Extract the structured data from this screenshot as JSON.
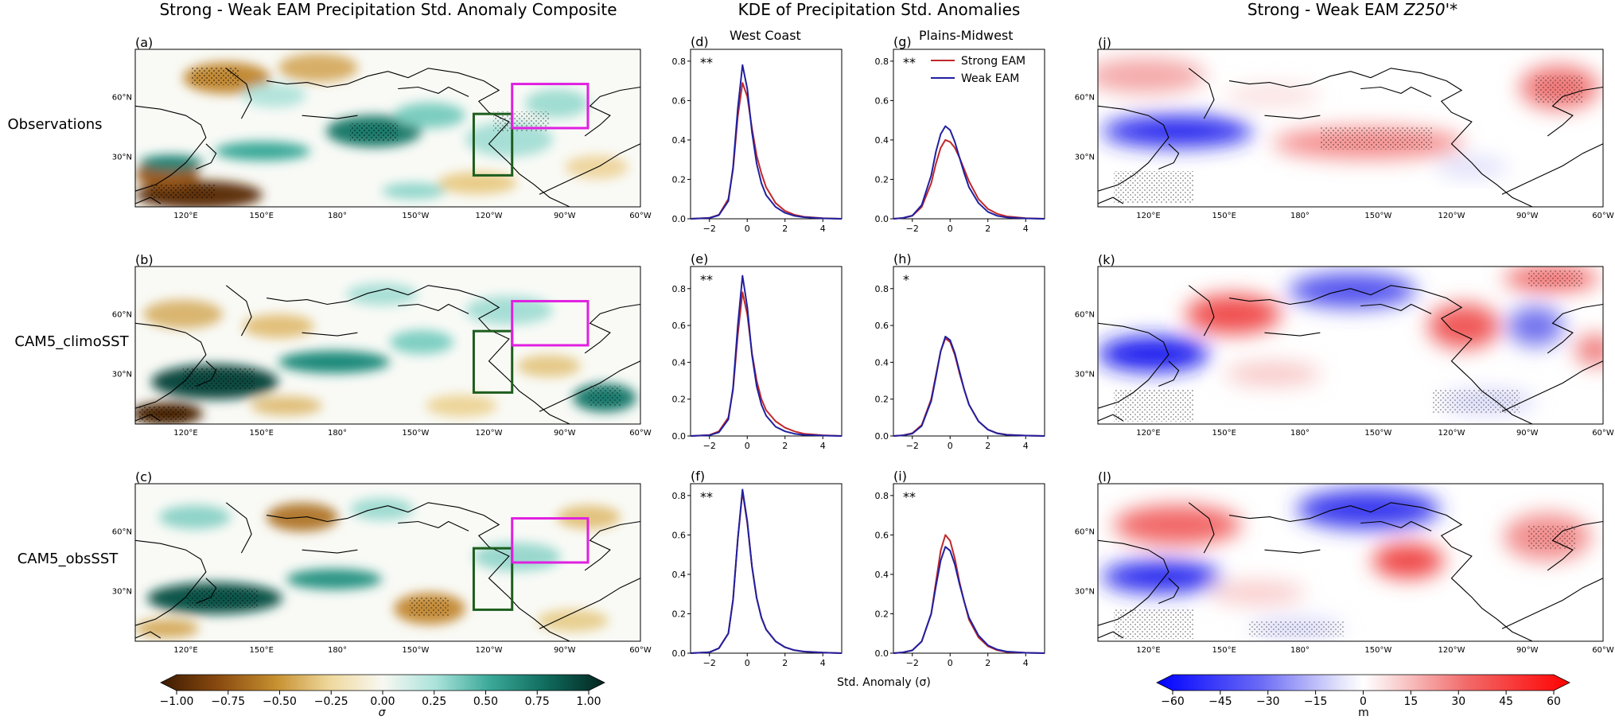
{
  "titles": {
    "left": "Strong - Weak EAM Precipitation Std. Anomaly Composite",
    "middle": "KDE of Precipitation Std. Anomalies",
    "right_prefix": "Strong - Weak EAM ",
    "right_var": "Z250'",
    "right_suffix": "*"
  },
  "row_labels": [
    "Observations",
    "CAM5_climoSST",
    "CAM5_obsSST"
  ],
  "panel_labels": {
    "a": "(a)",
    "b": "(b)",
    "c": "(c)",
    "d": "(d)",
    "e": "(e)",
    "f": "(f)",
    "g": "(g)",
    "h": "(h)",
    "i": "(i)",
    "j": "(j)",
    "k": "(k)",
    "l": "(l)"
  },
  "column_subtitles": {
    "west": "West Coast",
    "plains": "Plains-Midwest"
  },
  "map_axes": {
    "lon_ticks": [
      "120°E",
      "150°E",
      "180°",
      "150°W",
      "120°W",
      "90°W",
      "60°W"
    ],
    "lat_ticks": [
      "60°N",
      "30°N"
    ]
  },
  "colorbar_precip": {
    "ticks": [
      "−1.00",
      "−0.75",
      "−0.50",
      "−0.25",
      "0.00",
      "0.25",
      "0.50",
      "0.75",
      "1.00"
    ],
    "label": "σ"
  },
  "colorbar_z250": {
    "ticks": [
      "−60",
      "−45",
      "−30",
      "−15",
      "0",
      "15",
      "30",
      "45",
      "60"
    ],
    "label": "m"
  },
  "kde_xlabel": "Std. Anomaly (σ)",
  "colors": {
    "strong": "#c0282a",
    "weak": "#2020a0",
    "box_west": "#1e5e1e",
    "box_plains": "#e020e0"
  },
  "chart_data": [
    {
      "type": "line",
      "panel": "d",
      "subtitle": "West Coast",
      "significance": "**",
      "x": [
        -3,
        -2,
        -1.5,
        -1,
        -0.75,
        -0.5,
        -0.25,
        0,
        0.25,
        0.5,
        0.75,
        1,
        1.5,
        2,
        2.5,
        3,
        4,
        5
      ],
      "xlim": [
        -3,
        5
      ],
      "xticks": [
        -2,
        0,
        2,
        4
      ],
      "ylim": [
        0,
        0.86
      ],
      "yticks": [
        0.0,
        0.2,
        0.4,
        0.6,
        0.8
      ],
      "series": [
        {
          "name": "Strong EAM",
          "values": [
            0,
            0.005,
            0.02,
            0.1,
            0.25,
            0.52,
            0.69,
            0.62,
            0.46,
            0.32,
            0.23,
            0.16,
            0.08,
            0.04,
            0.02,
            0.01,
            0.003,
            0
          ]
        },
        {
          "name": "Weak EAM",
          "values": [
            0,
            0.004,
            0.018,
            0.09,
            0.26,
            0.56,
            0.78,
            0.66,
            0.44,
            0.28,
            0.18,
            0.12,
            0.06,
            0.03,
            0.015,
            0.008,
            0.002,
            0
          ]
        }
      ]
    },
    {
      "type": "line",
      "panel": "g",
      "subtitle": "Plains-Midwest",
      "significance": "**",
      "x": [
        -3,
        -2.5,
        -2,
        -1.5,
        -1,
        -0.75,
        -0.5,
        -0.25,
        0,
        0.25,
        0.5,
        0.75,
        1,
        1.5,
        2,
        2.5,
        3,
        4,
        5
      ],
      "xlim": [
        -3,
        5
      ],
      "xticks": [
        -2,
        0,
        2,
        4
      ],
      "ylim": [
        0,
        0.86
      ],
      "yticks": [
        0.0,
        0.2,
        0.4,
        0.6,
        0.8
      ],
      "series": [
        {
          "name": "Strong EAM",
          "values": [
            0,
            0.004,
            0.015,
            0.06,
            0.18,
            0.28,
            0.36,
            0.4,
            0.39,
            0.36,
            0.31,
            0.25,
            0.19,
            0.1,
            0.05,
            0.025,
            0.012,
            0.003,
            0
          ]
        },
        {
          "name": "Weak EAM",
          "values": [
            0,
            0.004,
            0.016,
            0.07,
            0.22,
            0.34,
            0.43,
            0.47,
            0.45,
            0.39,
            0.31,
            0.23,
            0.16,
            0.08,
            0.035,
            0.015,
            0.007,
            0.002,
            0
          ]
        }
      ]
    },
    {
      "type": "line",
      "panel": "e",
      "significance": "**",
      "x": [
        -3,
        -2,
        -1.5,
        -1,
        -0.75,
        -0.5,
        -0.25,
        0,
        0.25,
        0.5,
        0.75,
        1,
        1.5,
        2,
        2.5,
        3,
        4,
        5
      ],
      "xlim": [
        -3,
        5
      ],
      "xticks": [
        -2,
        0,
        2,
        4
      ],
      "ylim": [
        0,
        0.92
      ],
      "yticks": [
        0.0,
        0.2,
        0.4,
        0.6,
        0.8
      ],
      "series": [
        {
          "name": "Strong EAM",
          "values": [
            0,
            0.005,
            0.025,
            0.1,
            0.25,
            0.55,
            0.78,
            0.66,
            0.45,
            0.3,
            0.2,
            0.14,
            0.08,
            0.045,
            0.025,
            0.012,
            0.004,
            0
          ]
        },
        {
          "name": "Weak EAM",
          "values": [
            0,
            0.004,
            0.02,
            0.09,
            0.26,
            0.6,
            0.87,
            0.7,
            0.44,
            0.27,
            0.17,
            0.11,
            0.05,
            0.025,
            0.012,
            0.006,
            0.002,
            0
          ]
        }
      ]
    },
    {
      "type": "line",
      "panel": "h",
      "significance": "*",
      "x": [
        -3,
        -2.5,
        -2,
        -1.5,
        -1,
        -0.75,
        -0.5,
        -0.25,
        0,
        0.25,
        0.5,
        0.75,
        1,
        1.5,
        2,
        2.5,
        3,
        4,
        5
      ],
      "xlim": [
        -3,
        5
      ],
      "xticks": [
        -2,
        0,
        2,
        4
      ],
      "ylim": [
        0,
        0.92
      ],
      "yticks": [
        0.0,
        0.2,
        0.4,
        0.6,
        0.8
      ],
      "series": [
        {
          "name": "Strong EAM",
          "values": [
            0,
            0.004,
            0.015,
            0.06,
            0.2,
            0.33,
            0.46,
            0.53,
            0.51,
            0.44,
            0.34,
            0.25,
            0.17,
            0.08,
            0.035,
            0.015,
            0.007,
            0.002,
            0
          ]
        },
        {
          "name": "Weak EAM",
          "values": [
            0,
            0.003,
            0.013,
            0.055,
            0.19,
            0.32,
            0.46,
            0.54,
            0.52,
            0.45,
            0.35,
            0.25,
            0.17,
            0.08,
            0.034,
            0.014,
            0.006,
            0.002,
            0
          ]
        }
      ]
    },
    {
      "type": "line",
      "panel": "f",
      "significance": "**",
      "x": [
        -3,
        -2,
        -1.5,
        -1,
        -0.75,
        -0.5,
        -0.25,
        0,
        0.25,
        0.5,
        0.75,
        1,
        1.5,
        2,
        2.5,
        3,
        4,
        5
      ],
      "xlim": [
        -3,
        5
      ],
      "xticks": [
        -2,
        0,
        2,
        4
      ],
      "ylim": [
        0,
        0.86
      ],
      "yticks": [
        0.0,
        0.2,
        0.4,
        0.6,
        0.8
      ],
      "series": [
        {
          "name": "Strong EAM",
          "values": [
            0,
            0.005,
            0.025,
            0.1,
            0.27,
            0.58,
            0.82,
            0.66,
            0.44,
            0.28,
            0.18,
            0.12,
            0.06,
            0.03,
            0.015,
            0.008,
            0.003,
            0
          ]
        },
        {
          "name": "Weak EAM",
          "values": [
            0,
            0.005,
            0.025,
            0.1,
            0.27,
            0.58,
            0.83,
            0.67,
            0.44,
            0.28,
            0.18,
            0.12,
            0.06,
            0.03,
            0.015,
            0.008,
            0.003,
            0
          ]
        }
      ]
    },
    {
      "type": "line",
      "panel": "i",
      "significance": "**",
      "x": [
        -3,
        -2.5,
        -2,
        -1.5,
        -1,
        -0.75,
        -0.5,
        -0.25,
        0,
        0.25,
        0.5,
        0.75,
        1,
        1.5,
        2,
        2.5,
        3,
        4,
        5
      ],
      "xlim": [
        -3,
        5
      ],
      "xticks": [
        -2,
        0,
        2,
        4
      ],
      "ylim": [
        0,
        0.86
      ],
      "yticks": [
        0.0,
        0.2,
        0.4,
        0.6,
        0.8
      ],
      "series": [
        {
          "name": "Strong EAM",
          "values": [
            0,
            0.004,
            0.015,
            0.06,
            0.2,
            0.36,
            0.52,
            0.6,
            0.57,
            0.48,
            0.36,
            0.26,
            0.17,
            0.08,
            0.035,
            0.015,
            0.006,
            0.002,
            0
          ]
        },
        {
          "name": "Weak EAM",
          "values": [
            0,
            0.004,
            0.014,
            0.06,
            0.2,
            0.34,
            0.47,
            0.54,
            0.52,
            0.45,
            0.35,
            0.26,
            0.18,
            0.09,
            0.04,
            0.018,
            0.008,
            0.002,
            0
          ]
        }
      ]
    }
  ]
}
